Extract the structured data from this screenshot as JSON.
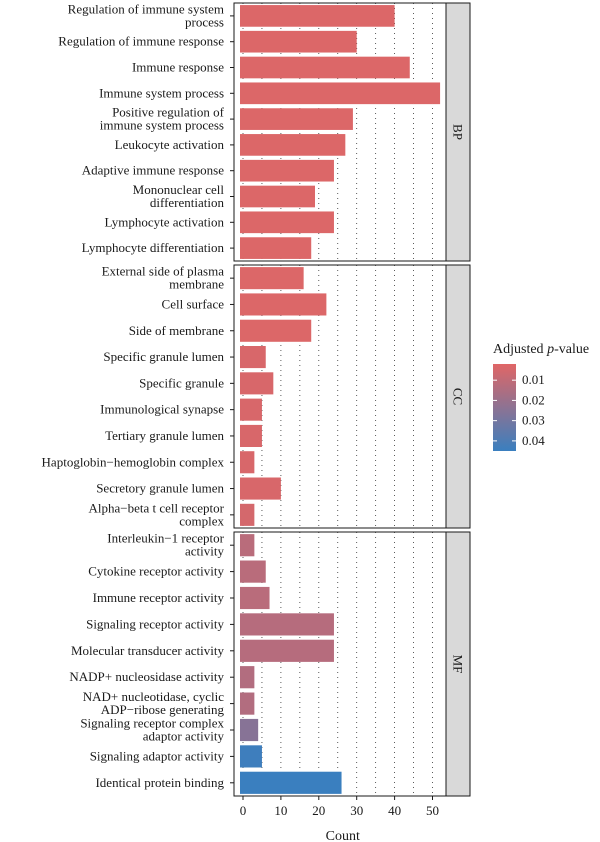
{
  "chart_data": {
    "type": "bar",
    "orientation": "horizontal",
    "xlabel": "Count",
    "xlim": [
      0,
      55
    ],
    "xticks": [
      0,
      10,
      20,
      30,
      40,
      50
    ],
    "grid": "dotted",
    "legend": {
      "title_prefix": "Adjusted ",
      "title_italic": "p",
      "title_suffix": "-value",
      "placement": "right",
      "ticks": [
        0.01,
        0.02,
        0.03,
        0.04
      ],
      "tick_labels": [
        "0.01",
        "0.02",
        "0.03",
        "0.04"
      ],
      "range": [
        0.002,
        0.045
      ],
      "colors": {
        "low": "#e06666",
        "high": "#3a7fbf"
      }
    },
    "panels": [
      {
        "label": "BP",
        "items": [
          {
            "lines": [
              "Regulation of immune system",
              "process"
            ],
            "value": 40,
            "padj": 0.003
          },
          {
            "lines": [
              "Regulation of immune response"
            ],
            "value": 30,
            "padj": 0.003
          },
          {
            "lines": [
              "Immune response"
            ],
            "value": 44,
            "padj": 0.003
          },
          {
            "lines": [
              "Immune system process"
            ],
            "value": 52,
            "padj": 0.003
          },
          {
            "lines": [
              "Positive regulation of",
              "immune system process"
            ],
            "value": 29,
            "padj": 0.003
          },
          {
            "lines": [
              "Leukocyte activation"
            ],
            "value": 27,
            "padj": 0.003
          },
          {
            "lines": [
              "Adaptive immune response"
            ],
            "value": 24,
            "padj": 0.003
          },
          {
            "lines": [
              "Mononuclear cell",
              "differentiation"
            ],
            "value": 19,
            "padj": 0.003
          },
          {
            "lines": [
              "Lymphocyte activation"
            ],
            "value": 24,
            "padj": 0.003
          },
          {
            "lines": [
              "Lymphocyte differentiation"
            ],
            "value": 18,
            "padj": 0.003
          }
        ]
      },
      {
        "label": "CC",
        "items": [
          {
            "lines": [
              "External side of plasma",
              "membrane"
            ],
            "value": 16,
            "padj": 0.003
          },
          {
            "lines": [
              "Cell surface"
            ],
            "value": 22,
            "padj": 0.003
          },
          {
            "lines": [
              "Side of membrane"
            ],
            "value": 18,
            "padj": 0.003
          },
          {
            "lines": [
              "Specific granule lumen"
            ],
            "value": 6,
            "padj": 0.004
          },
          {
            "lines": [
              "Specific granule"
            ],
            "value": 8,
            "padj": 0.004
          },
          {
            "lines": [
              "Immunological synapse"
            ],
            "value": 5,
            "padj": 0.004
          },
          {
            "lines": [
              "Tertiary granule lumen"
            ],
            "value": 5,
            "padj": 0.004
          },
          {
            "lines": [
              "Haptoglobin−hemoglobin complex"
            ],
            "value": 3,
            "padj": 0.004
          },
          {
            "lines": [
              "Secretory granule lumen"
            ],
            "value": 10,
            "padj": 0.004
          },
          {
            "lines": [
              "Alpha−beta t cell receptor",
              "complex"
            ],
            "value": 3,
            "padj": 0.005
          }
        ]
      },
      {
        "label": "MF",
        "items": [
          {
            "lines": [
              "Interleukin−1 receptor",
              "activity"
            ],
            "value": 3,
            "padj": 0.012
          },
          {
            "lines": [
              "Cytokine receptor activity"
            ],
            "value": 6,
            "padj": 0.012
          },
          {
            "lines": [
              "Immune receptor activity"
            ],
            "value": 7,
            "padj": 0.012
          },
          {
            "lines": [
              "Signaling receptor activity"
            ],
            "value": 24,
            "padj": 0.013
          },
          {
            "lines": [
              "Molecular transducer activity"
            ],
            "value": 24,
            "padj": 0.013
          },
          {
            "lines": [
              "NADP+ nucleosidase activity"
            ],
            "value": 3,
            "padj": 0.014
          },
          {
            "lines": [
              "NAD+ nucleotidase, cyclic",
              "ADP−ribose generating"
            ],
            "value": 3,
            "padj": 0.014
          },
          {
            "lines": [
              "Signaling receptor complex",
              "adaptor activity"
            ],
            "value": 4,
            "padj": 0.025
          },
          {
            "lines": [
              "Signaling adaptor activity"
            ],
            "value": 5,
            "padj": 0.044
          },
          {
            "lines": [
              "Identical protein binding"
            ],
            "value": 26,
            "padj": 0.045
          }
        ]
      }
    ]
  }
}
